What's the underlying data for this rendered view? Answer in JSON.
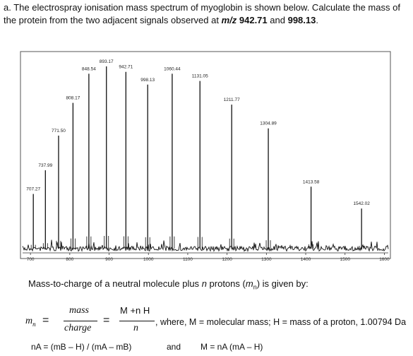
{
  "question": {
    "part": "a.",
    "text_1": "The electrospray ionisation mass spectrum of myoglobin is shown below. Calculate the mass of the protein from the two adjacent signals observed at ",
    "mz_label": "m/z",
    "value_1": "942.71",
    "and_word": "and",
    "value_2": "998.13",
    "end": "."
  },
  "chart_data": {
    "type": "line",
    "x_ticks": [
      700,
      800,
      900,
      1000,
      1100,
      1200,
      1300,
      1400,
      1500,
      1600
    ],
    "xlim": [
      680,
      1610
    ],
    "peaks": [
      {
        "x": 707.27,
        "y": 0.3,
        "label": "707.27"
      },
      {
        "x": 737.99,
        "y": 0.43,
        "label": "737.99"
      },
      {
        "x": 771.5,
        "y": 0.62,
        "label": "771.50"
      },
      {
        "x": 808.17,
        "y": 0.8,
        "label": "808.17"
      },
      {
        "x": 848.54,
        "y": 0.96,
        "label": "848.54"
      },
      {
        "x": 893.17,
        "y": 1.0,
        "label": "893.17"
      },
      {
        "x": 942.71,
        "y": 0.97,
        "label": "942.71"
      },
      {
        "x": 998.13,
        "y": 0.9,
        "label": "998.13"
      },
      {
        "x": 1060.44,
        "y": 0.96,
        "label": "1060.44"
      },
      {
        "x": 1131.05,
        "y": 0.92,
        "label": "1131.05"
      },
      {
        "x": 1211.77,
        "y": 0.79,
        "label": "1211.77"
      },
      {
        "x": 1304.89,
        "y": 0.66,
        "label": "1304.89"
      },
      {
        "x": 1413.58,
        "y": 0.34,
        "label": "1413.58"
      },
      {
        "x": 1542.02,
        "y": 0.22,
        "label": "1542.02"
      }
    ]
  },
  "caption": {
    "text_1": "Mass-to-charge of a neutral molecule plus ",
    "n": "n",
    "text_2": " protons (",
    "m": "m",
    "sub_n": "n",
    "text_3": ") is given by:"
  },
  "formula": {
    "lhs": "m",
    "lhs_sub": "n",
    "eq": "=",
    "frac1_num": "mass",
    "frac1_den": "charge",
    "eq2": "=",
    "frac2_num": "M +n H",
    "frac2_den": "n",
    "where_text": ", where, M = molecular mass; H = mass of a proton, 1.00794 Da"
  },
  "bottom": {
    "eq1": "nA = (mB – H) / (mA – mB)",
    "and_word": "and",
    "eq2": "M = nA (mA – H)"
  },
  "colors": {
    "ink": "#111111",
    "frame": "#555555"
  }
}
